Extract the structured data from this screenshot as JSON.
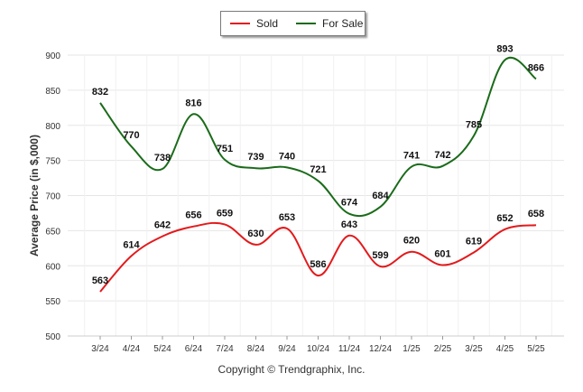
{
  "chart_data": {
    "type": "line",
    "ylabel": "Average Price (in $,000)",
    "xlabel": "",
    "ylim": [
      500,
      900
    ],
    "y_ticks": [
      500,
      550,
      600,
      650,
      700,
      750,
      800,
      850,
      900
    ],
    "categories": [
      "3/24",
      "4/24",
      "5/24",
      "6/24",
      "7/24",
      "8/24",
      "9/24",
      "10/24",
      "11/24",
      "12/24",
      "1/25",
      "2/25",
      "3/25",
      "4/25",
      "5/25"
    ],
    "series": [
      {
        "name": "Sold",
        "color": "#e31a1c",
        "values": [
          563,
          614,
          642,
          656,
          659,
          630,
          653,
          586,
          643,
          599,
          620,
          601,
          619,
          652,
          658
        ]
      },
      {
        "name": "For Sale",
        "color": "#1a6b1a",
        "values": [
          832,
          770,
          738,
          816,
          751,
          739,
          740,
          721,
          674,
          684,
          741,
          742,
          785,
          893,
          866
        ]
      }
    ],
    "grid": true,
    "legend_position": "top-center"
  },
  "footer": {
    "copyright": "Copyright © Trendgraphix, Inc."
  }
}
